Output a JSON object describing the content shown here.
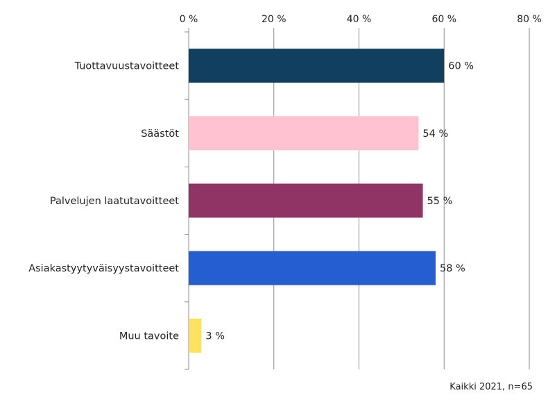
{
  "chart_data": {
    "type": "bar",
    "orientation": "horizontal",
    "categories": [
      "Tuottavuustavoitteet",
      "Säästöt",
      "Palvelujen laatutavoitteet",
      "Asiakastyytyväisyystavoitteet",
      "Muu tavoite"
    ],
    "values": [
      60,
      54,
      55,
      58,
      3
    ],
    "value_labels": [
      "60 %",
      "54 %",
      "55 %",
      "58 %",
      "3 %"
    ],
    "colors": [
      "#103f60",
      "#fec2d1",
      "#903466",
      "#245ed1",
      "#ffe160"
    ],
    "xlim": [
      0,
      80
    ],
    "x_ticks": [
      0,
      20,
      40,
      60,
      80
    ],
    "x_tick_labels": [
      "0 %",
      "20 %",
      "40 %",
      "60 %",
      "80 %"
    ],
    "x_axis_position": "top",
    "grid": true,
    "legend": "none",
    "title": "",
    "xlabel": "",
    "ylabel": ""
  },
  "note": "Kaikki 2021, n=65"
}
